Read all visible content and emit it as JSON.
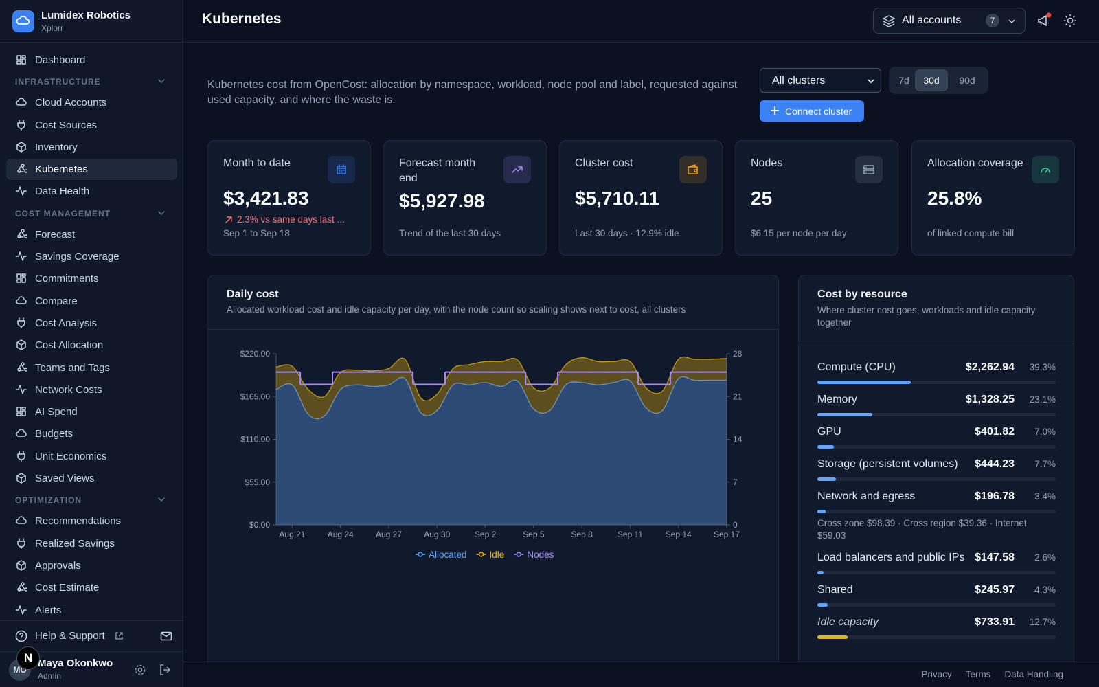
{
  "sidebar": {
    "org": "Lumidex Robotics",
    "workspace": "Xplorr",
    "home": "Dashboard",
    "sections": [
      {
        "title": "INFRASTRUCTURE",
        "items": [
          "Cloud Accounts",
          "Cost Sources",
          "Inventory",
          "Kubernetes",
          "Data Health"
        ]
      },
      {
        "title": "COST MANAGEMENT",
        "items": [
          "Forecast",
          "Savings Coverage",
          "Commitments",
          "Compare",
          "Cost Analysis",
          "Cost Allocation",
          "Teams and Tags",
          "Network Costs",
          "AI Spend",
          "Budgets",
          "Unit Economics",
          "Saved Views"
        ]
      },
      {
        "title": "OPTIMIZATION",
        "items": [
          "Recommendations",
          "Realized Savings",
          "Approvals",
          "Cost Estimate",
          "Alerts"
        ]
      }
    ],
    "help": "Help & Support",
    "user": {
      "initials": "MO",
      "name": "Maya Okonkwo",
      "role": "Admin"
    }
  },
  "dev_badge": "N",
  "header": {
    "title": "Kubernetes",
    "accounts": "All accounts",
    "account_count": 7
  },
  "toolbar": {
    "description": "Kubernetes cost from OpenCost: allocation by namespace, workload, node pool and label, requested against used capacity, and where the waste is.",
    "cluster_select": "All clusters",
    "ranges": [
      {
        "label": "7d"
      },
      {
        "label": "30d",
        "selected": true
      },
      {
        "label": "90d"
      }
    ],
    "connect_button": "Connect cluster"
  },
  "kpis": [
    {
      "title": "Month to date",
      "value": "$3,421.83",
      "delta": "2.3% vs same days last ...",
      "note": "Sep 1 to Sep 18",
      "color": "#3b82f6"
    },
    {
      "title": "Forecast month end",
      "value": "$5,927.98",
      "note": "Trend of the last 30 days",
      "color": "#a78bfa"
    },
    {
      "title": "Cluster cost",
      "value": "$5,710.11",
      "note": "Last 30 days · 12.9% idle",
      "color": "#f59e0b"
    },
    {
      "title": "Nodes",
      "value": 25,
      "note": "$6.15 per node per day",
      "color": "#94a3b8"
    },
    {
      "title": "Allocation coverage",
      "value": "25.8%",
      "note": "of linked compute bill",
      "color": "#34d399"
    }
  ],
  "chart_data": {
    "type": "area",
    "stacked": true,
    "title": "Daily cost",
    "subtitle": "Allocated workload cost and idle capacity per day, with the node count so scaling shows next to cost, all clusters",
    "categories": [
      null,
      "Aug 21",
      null,
      null,
      "Aug 24",
      null,
      null,
      "Aug 27",
      null,
      null,
      "Aug 30",
      null,
      null,
      "Sep 2",
      null,
      null,
      "Sep 5",
      null,
      null,
      "Sep 8",
      null,
      null,
      "Sep 11",
      null,
      null,
      "Sep 14",
      null,
      null,
      "Sep 17"
    ],
    "series": [
      {
        "name": "Allocated",
        "color": "#60a5fa",
        "values": [
          174,
          180,
          142,
          140,
          174,
          180,
          178,
          180,
          188,
          144,
          147,
          180,
          180,
          183,
          178,
          185,
          149,
          147,
          180,
          183,
          180,
          183,
          185,
          150,
          147,
          188,
          186,
          186,
          186
        ]
      },
      {
        "name": "Idle",
        "color": "#eab308",
        "values": [
          29,
          24,
          32,
          25,
          22,
          19,
          20,
          21,
          25,
          19,
          21,
          21,
          26,
          27,
          32,
          27,
          27,
          29,
          26,
          32,
          30,
          27,
          25,
          26,
          25,
          25,
          27,
          27,
          28
        ]
      },
      {
        "name": "Nodes",
        "color": "#a78bfa",
        "axis": "y2",
        "kind": "step",
        "values": [
          25,
          25,
          23,
          23,
          25,
          25,
          25,
          25,
          25,
          23,
          23,
          25,
          25,
          25,
          25,
          25,
          23,
          23,
          25,
          25,
          25,
          25,
          25,
          23,
          23,
          25,
          25,
          25,
          25
        ]
      }
    ],
    "ylim": [
      0,
      220
    ],
    "yticks": [
      {
        "value": 0,
        "label": "$0.00"
      },
      {
        "value": 55,
        "label": "$55.00"
      },
      {
        "value": 110,
        "label": "$110.00"
      },
      {
        "value": 165,
        "label": "$165.00"
      },
      {
        "value": 220,
        "label": "$220.00"
      }
    ],
    "y2lim": [
      0,
      28
    ],
    "y2ticks": [
      0,
      7,
      14,
      21,
      28
    ],
    "grid": false,
    "legend": "bottom"
  },
  "cost_by_resource": {
    "title": "Cost by resource",
    "subtitle": "Where cluster cost goes, workloads and idle capacity together",
    "items": [
      {
        "name": "Compute (CPU)",
        "amount": "$2,262.94",
        "share": {
          "value": 39.3,
          "label": "39.3%"
        },
        "color": "#60a5fa"
      },
      {
        "name": "Memory",
        "amount": "$1,328.25",
        "share": {
          "value": 23.1,
          "label": "23.1%"
        },
        "color": "#60a5fa"
      },
      {
        "name": "GPU",
        "amount": "$401.82",
        "share": {
          "value": 7,
          "label": "7.0%"
        },
        "color": "#60a5fa"
      },
      {
        "name": "Storage (persistent volumes)",
        "amount": "$444.23",
        "share": {
          "value": 7.7,
          "label": "7.7%"
        },
        "color": "#60a5fa"
      },
      {
        "name": "Network and egress",
        "amount": "$196.78",
        "share": {
          "value": 3.4,
          "label": "3.4%"
        },
        "color": "#60a5fa",
        "detail": "Cross zone $98.39 · Cross region $39.36 · Internet $59.03"
      },
      {
        "name": "Load balancers and public IPs",
        "amount": "$147.58",
        "share": {
          "value": 2.6,
          "label": "2.6%"
        },
        "color": "#60a5fa"
      },
      {
        "name": "Shared",
        "amount": "$245.97",
        "share": {
          "value": 4.3,
          "label": "4.3%"
        },
        "color": "#60a5fa"
      },
      {
        "name": "Idle capacity",
        "amount": "$733.91",
        "share": {
          "value": 12.7,
          "label": "12.7%"
        },
        "color": "#eab308",
        "italic": true
      }
    ]
  },
  "footer": {
    "links": [
      "Privacy",
      "Terms",
      "Data Handling"
    ]
  }
}
